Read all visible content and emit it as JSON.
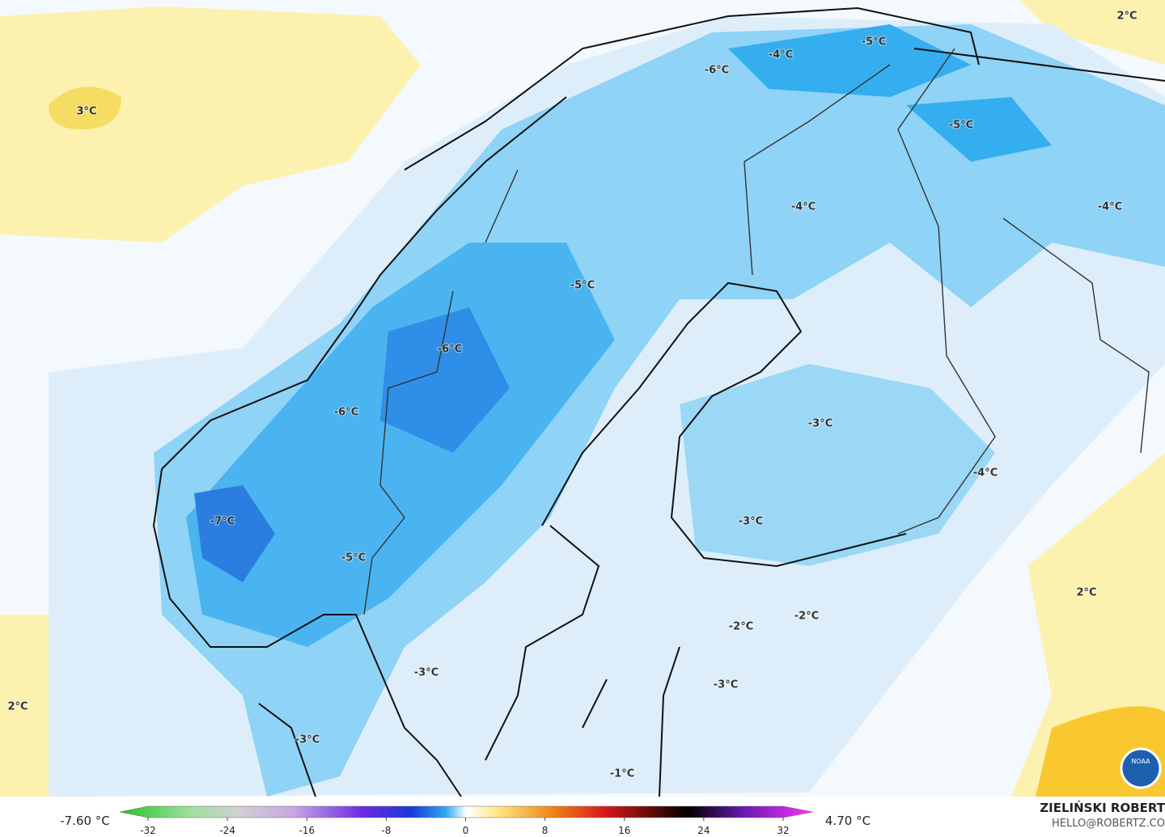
{
  "map": {
    "labels": [
      "3°C",
      "2°C",
      "-5°C",
      "-4°C",
      "-6°C",
      "-5°C",
      "-4°C",
      "-4°C",
      "-5°C",
      "-6°C",
      "-6°C",
      "-3°C",
      "-4°C",
      "-3°C",
      "-7°C",
      "-5°C",
      "2°C",
      "-2°C",
      "-2°C",
      "-3°C",
      "-3°C",
      "2°C",
      "-3°C",
      "-1°C"
    ]
  },
  "legend": {
    "min_label": "-7.60 °C",
    "max_label": "4.70 °C",
    "ticks": [
      -32,
      -24,
      -16,
      -8,
      0,
      8,
      16,
      24,
      32
    ]
  },
  "credit": {
    "name": "ZIELIŃSKI ROBERT",
    "email": "HELLO@ROBERTZ.CO",
    "logo": "NOAA"
  }
}
